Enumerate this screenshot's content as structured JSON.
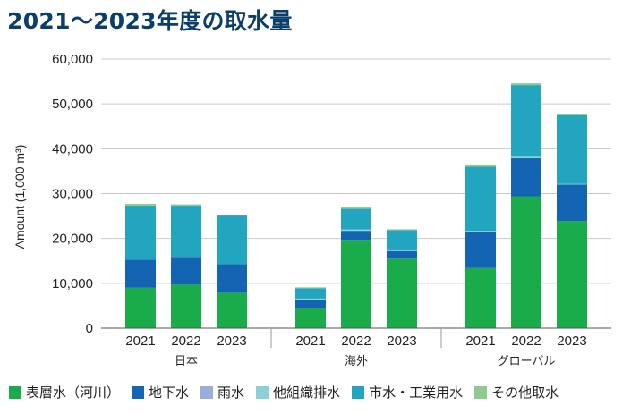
{
  "chart_data": {
    "type": "bar",
    "stacked": true,
    "title": "2021～2023年度の取水量",
    "ylabel": "Amount (1,000 m³)",
    "ylim": [
      0,
      60000
    ],
    "yticks": [
      "0",
      "10,000",
      "20,000",
      "30,000",
      "40,000",
      "50,000",
      "60,000"
    ],
    "grid": true,
    "legend_position": "bottom",
    "groups": [
      "日本",
      "海外",
      "グローバル"
    ],
    "categories": [
      "2021",
      "2022",
      "2023"
    ],
    "series": [
      {
        "name": "表層水（河川）",
        "color": "#1aab4b",
        "values": [
          [
            9000,
            9700,
            7900
          ],
          [
            4400,
            19700,
            15500
          ],
          [
            13400,
            29400,
            23900
          ]
        ]
      },
      {
        "name": "地下水",
        "color": "#1464b4",
        "values": [
          [
            6300,
            6200,
            6400
          ],
          [
            1900,
            2000,
            1700
          ],
          [
            8000,
            8500,
            8100
          ]
        ]
      },
      {
        "name": "雨水",
        "color": "#9aaedb",
        "values": [
          [
            0,
            0,
            0
          ],
          [
            0,
            0,
            0
          ],
          [
            0,
            0,
            0
          ]
        ]
      },
      {
        "name": "他組織排水",
        "color": "#8ccfd6",
        "values": [
          [
            0,
            0,
            0
          ],
          [
            300,
            300,
            150
          ],
          [
            300,
            300,
            150
          ]
        ]
      },
      {
        "name": "市水・工業用水",
        "color": "#22a5bf",
        "values": [
          [
            12000,
            11400,
            10800
          ],
          [
            2300,
            4600,
            4500
          ],
          [
            14300,
            16000,
            15300
          ]
        ]
      },
      {
        "name": "その他取水",
        "color": "#8fcb8f",
        "values": [
          [
            400,
            300,
            0
          ],
          [
            200,
            300,
            200
          ],
          [
            500,
            400,
            200
          ]
        ]
      }
    ]
  }
}
